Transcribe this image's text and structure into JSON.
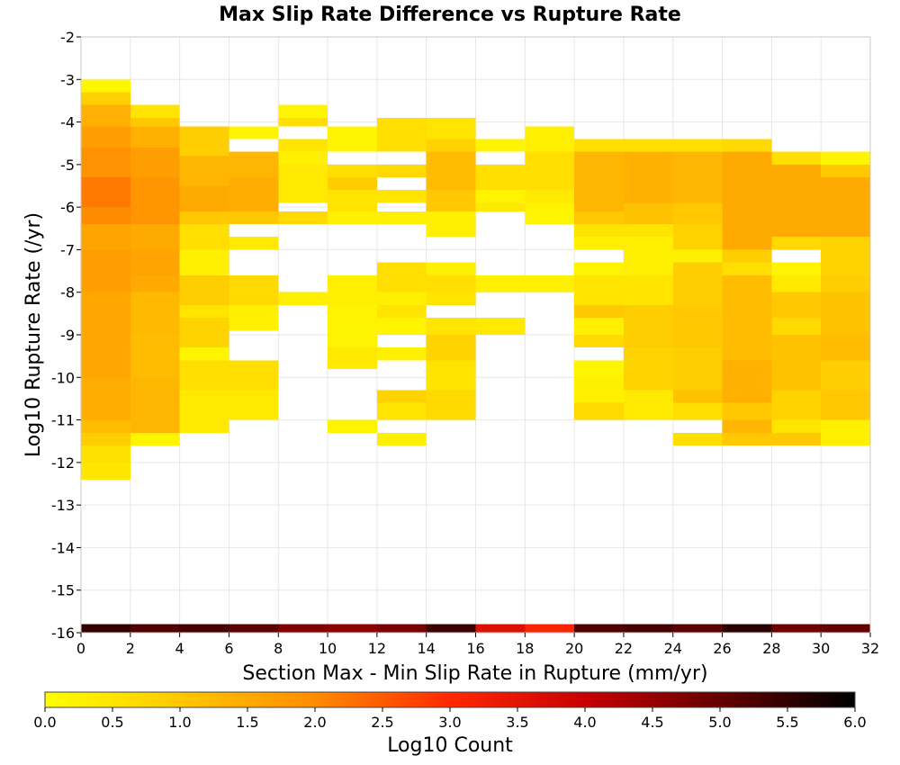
{
  "chart_data": {
    "type": "heatmap",
    "title": "Max Slip Rate Difference vs Rupture Rate",
    "xlabel": "Section Max - Min Slip Rate in Rupture (mm/yr)",
    "ylabel": "Log10 Rupture Rate (/yr)",
    "xlim": [
      0,
      32
    ],
    "ylim": [
      -16,
      -2
    ],
    "x_ticks": [
      "0",
      "2",
      "4",
      "6",
      "8",
      "10",
      "12",
      "14",
      "16",
      "18",
      "20",
      "22",
      "24",
      "26",
      "28",
      "30",
      "32"
    ],
    "y_ticks": [
      "-2",
      "-3",
      "-4",
      "-5",
      "-6",
      "-7",
      "-8",
      "-9",
      "-10",
      "-11",
      "-12",
      "-13",
      "-14",
      "-15",
      "-16"
    ],
    "colorbar": {
      "label": "Log10 Count",
      "min": 0,
      "max": 6,
      "ticks": [
        "0.0",
        "0.5",
        "1.0",
        "1.5",
        "2.0",
        "2.5",
        "3.0",
        "3.5",
        "4.0",
        "4.5",
        "5.0",
        "5.5",
        "6.0"
      ]
    },
    "grid": true,
    "x_bin_width": 2,
    "y_bin_height": 0.29,
    "columns": [
      {
        "x0": 0,
        "bins": [
          {
            "y0": -3.3,
            "y1": -3.0,
            "v": 0.15
          },
          {
            "y0": -3.6,
            "y1": -3.3,
            "v": 0.85
          },
          {
            "y0": -4.1,
            "y1": -3.6,
            "v": 1.4
          },
          {
            "y0": -4.6,
            "y1": -4.1,
            "v": 1.7
          },
          {
            "y0": -5.3,
            "y1": -4.6,
            "v": 1.9
          },
          {
            "y0": -6.0,
            "y1": -5.3,
            "v": 2.2
          },
          {
            "y0": -6.4,
            "y1": -6.0,
            "v": 2.0
          },
          {
            "y0": -7.0,
            "y1": -6.4,
            "v": 1.6
          },
          {
            "y0": -8.0,
            "y1": -7.0,
            "v": 1.7
          },
          {
            "y0": -9.0,
            "y1": -8.0,
            "v": 1.55
          },
          {
            "y0": -10.0,
            "y1": -9.0,
            "v": 1.55
          },
          {
            "y0": -11.0,
            "y1": -10.0,
            "v": 1.45
          },
          {
            "y0": -11.3,
            "y1": -11.0,
            "v": 1.2
          },
          {
            "y0": -11.6,
            "y1": -11.3,
            "v": 0.9
          },
          {
            "y0": -12.0,
            "y1": -11.6,
            "v": 0.55
          },
          {
            "y0": -12.4,
            "y1": -12.0,
            "v": 0.45
          },
          {
            "y0": -16.0,
            "y1": -15.8,
            "v": 5.5
          }
        ]
      },
      {
        "x0": 2,
        "bins": [
          {
            "y0": -3.9,
            "y1": -3.6,
            "v": 0.5
          },
          {
            "y0": -4.1,
            "y1": -3.9,
            "v": 1.0
          },
          {
            "y0": -4.6,
            "y1": -4.1,
            "v": 1.4
          },
          {
            "y0": -5.3,
            "y1": -4.6,
            "v": 1.7
          },
          {
            "y0": -6.4,
            "y1": -5.3,
            "v": 1.85
          },
          {
            "y0": -7.0,
            "y1": -6.4,
            "v": 1.5
          },
          {
            "y0": -7.6,
            "y1": -7.0,
            "v": 1.6
          },
          {
            "y0": -8.0,
            "y1": -7.6,
            "v": 1.5
          },
          {
            "y0": -9.0,
            "y1": -8.0,
            "v": 1.25
          },
          {
            "y0": -10.0,
            "y1": -9.0,
            "v": 1.2
          },
          {
            "y0": -11.3,
            "y1": -10.0,
            "v": 1.3
          },
          {
            "y0": -11.6,
            "y1": -11.3,
            "v": 0.2
          },
          {
            "y0": -16.0,
            "y1": -15.8,
            "v": 5.2
          }
        ]
      },
      {
        "x0": 4,
        "bins": [
          {
            "y0": -4.8,
            "y1": -4.1,
            "v": 0.9
          },
          {
            "y0": -5.5,
            "y1": -4.8,
            "v": 1.3
          },
          {
            "y0": -6.1,
            "y1": -5.5,
            "v": 1.5
          },
          {
            "y0": -6.4,
            "y1": -6.1,
            "v": 1.0
          },
          {
            "y0": -7.0,
            "y1": -6.4,
            "v": 0.6
          },
          {
            "y0": -7.6,
            "y1": -7.0,
            "v": 0.3
          },
          {
            "y0": -8.3,
            "y1": -7.6,
            "v": 0.9
          },
          {
            "y0": -8.6,
            "y1": -8.3,
            "v": 0.5
          },
          {
            "y0": -9.3,
            "y1": -8.6,
            "v": 0.8
          },
          {
            "y0": -9.6,
            "y1": -9.3,
            "v": 0.2
          },
          {
            "y0": -10.3,
            "y1": -9.6,
            "v": 0.6
          },
          {
            "y0": -11.3,
            "y1": -10.3,
            "v": 0.4
          },
          {
            "y0": -16.0,
            "y1": -15.8,
            "v": 5.3
          }
        ]
      },
      {
        "x0": 6,
        "bins": [
          {
            "y0": -4.4,
            "y1": -4.1,
            "v": 0.2
          },
          {
            "y0": -5.3,
            "y1": -4.7,
            "v": 1.3
          },
          {
            "y0": -6.1,
            "y1": -5.3,
            "v": 1.45
          },
          {
            "y0": -6.4,
            "y1": -6.1,
            "v": 1.0
          },
          {
            "y0": -7.0,
            "y1": -6.7,
            "v": 0.4
          },
          {
            "y0": -8.3,
            "y1": -7.6,
            "v": 0.7
          },
          {
            "y0": -8.9,
            "y1": -8.3,
            "v": 0.3
          },
          {
            "y0": -10.3,
            "y1": -9.6,
            "v": 0.6
          },
          {
            "y0": -11.0,
            "y1": -10.3,
            "v": 0.4
          },
          {
            "y0": -16.0,
            "y1": -15.8,
            "v": 5.1
          }
        ]
      },
      {
        "x0": 8,
        "bins": [
          {
            "y0": -3.9,
            "y1": -3.6,
            "v": 0.2
          },
          {
            "y0": -4.1,
            "y1": -3.9,
            "v": 0.6
          },
          {
            "y0": -4.7,
            "y1": -4.4,
            "v": 0.5
          },
          {
            "y0": -5.0,
            "y1": -4.7,
            "v": 0.3
          },
          {
            "y0": -5.9,
            "y1": -5.0,
            "v": 0.4
          },
          {
            "y0": -6.4,
            "y1": -6.1,
            "v": 0.7
          },
          {
            "y0": -8.3,
            "y1": -8.0,
            "v": 0.3
          },
          {
            "y0": -16.0,
            "y1": -15.8,
            "v": 4.7
          }
        ]
      },
      {
        "x0": 10,
        "bins": [
          {
            "y0": -4.7,
            "y1": -4.1,
            "v": 0.2
          },
          {
            "y0": -5.3,
            "y1": -5.0,
            "v": 0.6
          },
          {
            "y0": -5.6,
            "y1": -5.3,
            "v": 0.9
          },
          {
            "y0": -6.1,
            "y1": -5.6,
            "v": 0.5
          },
          {
            "y0": -6.4,
            "y1": -6.1,
            "v": 0.3
          },
          {
            "y0": -8.0,
            "y1": -7.6,
            "v": 0.3
          },
          {
            "y0": -8.3,
            "y1": -8.0,
            "v": 0.3
          },
          {
            "y0": -9.3,
            "y1": -8.3,
            "v": 0.2
          },
          {
            "y0": -9.8,
            "y1": -9.3,
            "v": 0.4
          },
          {
            "y0": -11.3,
            "y1": -11.0,
            "v": 0.2
          },
          {
            "y0": -16.0,
            "y1": -15.8,
            "v": 4.6
          }
        ]
      },
      {
        "x0": 12,
        "bins": [
          {
            "y0": -4.7,
            "y1": -3.9,
            "v": 0.6
          },
          {
            "y0": -5.3,
            "y1": -5.0,
            "v": 0.7
          },
          {
            "y0": -5.9,
            "y1": -5.6,
            "v": 0.5
          },
          {
            "y0": -6.4,
            "y1": -6.1,
            "v": 0.3
          },
          {
            "y0": -8.0,
            "y1": -7.3,
            "v": 0.6
          },
          {
            "y0": -8.3,
            "y1": -8.0,
            "v": 0.3
          },
          {
            "y0": -8.6,
            "y1": -8.3,
            "v": 0.5
          },
          {
            "y0": -9.0,
            "y1": -8.6,
            "v": 0.2
          },
          {
            "y0": -9.6,
            "y1": -9.3,
            "v": 0.3
          },
          {
            "y0": -10.6,
            "y1": -10.3,
            "v": 0.8
          },
          {
            "y0": -11.0,
            "y1": -10.6,
            "v": 0.5
          },
          {
            "y0": -11.6,
            "y1": -11.3,
            "v": 0.3
          },
          {
            "y0": -16.0,
            "y1": -15.8,
            "v": 4.8
          }
        ]
      },
      {
        "x0": 14,
        "bins": [
          {
            "y0": -4.4,
            "y1": -3.9,
            "v": 0.5
          },
          {
            "y0": -4.7,
            "y1": -4.4,
            "v": 0.8
          },
          {
            "y0": -5.6,
            "y1": -4.7,
            "v": 1.2
          },
          {
            "y0": -6.1,
            "y1": -5.6,
            "v": 1.0
          },
          {
            "y0": -6.7,
            "y1": -6.1,
            "v": 0.3
          },
          {
            "y0": -7.6,
            "y1": -7.3,
            "v": 0.3
          },
          {
            "y0": -8.0,
            "y1": -7.6,
            "v": 0.6
          },
          {
            "y0": -8.3,
            "y1": -8.0,
            "v": 0.5
          },
          {
            "y0": -9.0,
            "y1": -8.6,
            "v": 0.5
          },
          {
            "y0": -9.6,
            "y1": -9.0,
            "v": 0.8
          },
          {
            "y0": -10.3,
            "y1": -9.6,
            "v": 0.5
          },
          {
            "y0": -11.0,
            "y1": -10.3,
            "v": 0.7
          },
          {
            "y0": -16.0,
            "y1": -15.8,
            "v": 5.4
          }
        ]
      },
      {
        "x0": 16,
        "bins": [
          {
            "y0": -4.7,
            "y1": -4.4,
            "v": 0.2
          },
          {
            "y0": -5.6,
            "y1": -5.0,
            "v": 0.6
          },
          {
            "y0": -5.9,
            "y1": -5.6,
            "v": 0.2
          },
          {
            "y0": -6.1,
            "y1": -5.9,
            "v": 0.4
          },
          {
            "y0": -8.0,
            "y1": -7.6,
            "v": 0.3
          },
          {
            "y0": -9.0,
            "y1": -8.6,
            "v": 0.4
          },
          {
            "y0": -16.0,
            "y1": -15.8,
            "v": 3.6
          }
        ]
      },
      {
        "x0": 18,
        "bins": [
          {
            "y0": -4.7,
            "y1": -4.1,
            "v": 0.3
          },
          {
            "y0": -5.6,
            "y1": -4.7,
            "v": 0.6
          },
          {
            "y0": -5.9,
            "y1": -5.6,
            "v": 0.4
          },
          {
            "y0": -6.4,
            "y1": -5.9,
            "v": 0.2
          },
          {
            "y0": -8.0,
            "y1": -7.6,
            "v": 0.3
          },
          {
            "y0": -16.0,
            "y1": -15.8,
            "v": 3.1
          }
        ]
      },
      {
        "x0": 20,
        "bins": [
          {
            "y0": -4.7,
            "y1": -4.4,
            "v": 0.6
          },
          {
            "y0": -6.1,
            "y1": -4.7,
            "v": 1.3
          },
          {
            "y0": -6.4,
            "y1": -6.1,
            "v": 1.0
          },
          {
            "y0": -6.7,
            "y1": -6.4,
            "v": 0.5
          },
          {
            "y0": -7.0,
            "y1": -6.7,
            "v": 0.3
          },
          {
            "y0": -7.6,
            "y1": -7.3,
            "v": 0.2
          },
          {
            "y0": -8.3,
            "y1": -7.6,
            "v": 0.5
          },
          {
            "y0": -8.6,
            "y1": -8.3,
            "v": 1.0
          },
          {
            "y0": -9.0,
            "y1": -8.6,
            "v": 0.3
          },
          {
            "y0": -9.3,
            "y1": -9.0,
            "v": 0.7
          },
          {
            "y0": -10.0,
            "y1": -9.6,
            "v": 0.2
          },
          {
            "y0": -10.6,
            "y1": -10.0,
            "v": 0.3
          },
          {
            "y0": -11.0,
            "y1": -10.6,
            "v": 0.7
          },
          {
            "y0": -16.0,
            "y1": -15.8,
            "v": 5.2
          }
        ]
      },
      {
        "x0": 22,
        "bins": [
          {
            "y0": -4.7,
            "y1": -4.4,
            "v": 0.6
          },
          {
            "y0": -5.9,
            "y1": -4.7,
            "v": 1.4
          },
          {
            "y0": -6.4,
            "y1": -5.9,
            "v": 1.1
          },
          {
            "y0": -6.7,
            "y1": -6.4,
            "v": 0.5
          },
          {
            "y0": -7.6,
            "y1": -6.7,
            "v": 0.3
          },
          {
            "y0": -8.3,
            "y1": -7.6,
            "v": 0.5
          },
          {
            "y0": -9.3,
            "y1": -8.3,
            "v": 0.9
          },
          {
            "y0": -10.3,
            "y1": -9.3,
            "v": 0.8
          },
          {
            "y0": -11.0,
            "y1": -10.3,
            "v": 0.4
          },
          {
            "y0": -16.0,
            "y1": -15.8,
            "v": 5.3
          }
        ]
      },
      {
        "x0": 24,
        "bins": [
          {
            "y0": -4.7,
            "y1": -4.4,
            "v": 0.6
          },
          {
            "y0": -5.9,
            "y1": -4.7,
            "v": 1.3
          },
          {
            "y0": -6.4,
            "y1": -5.9,
            "v": 1.0
          },
          {
            "y0": -7.0,
            "y1": -6.4,
            "v": 0.8
          },
          {
            "y0": -7.3,
            "y1": -7.0,
            "v": 0.3
          },
          {
            "y0": -8.3,
            "y1": -7.3,
            "v": 0.9
          },
          {
            "y0": -9.3,
            "y1": -8.3,
            "v": 1.0
          },
          {
            "y0": -10.3,
            "y1": -9.3,
            "v": 0.9
          },
          {
            "y0": -10.6,
            "y1": -10.3,
            "v": 1.1
          },
          {
            "y0": -11.0,
            "y1": -10.6,
            "v": 0.6
          },
          {
            "y0": -11.6,
            "y1": -11.3,
            "v": 0.6
          },
          {
            "y0": -16.0,
            "y1": -15.8,
            "v": 5.1
          }
        ]
      },
      {
        "x0": 26,
        "bins": [
          {
            "y0": -4.7,
            "y1": -4.4,
            "v": 0.7
          },
          {
            "y0": -7.0,
            "y1": -4.7,
            "v": 1.5
          },
          {
            "y0": -7.3,
            "y1": -7.0,
            "v": 0.9
          },
          {
            "y0": -7.6,
            "y1": -7.3,
            "v": 0.6
          },
          {
            "y0": -9.6,
            "y1": -7.6,
            "v": 1.2
          },
          {
            "y0": -10.6,
            "y1": -9.6,
            "v": 1.4
          },
          {
            "y0": -11.0,
            "y1": -10.6,
            "v": 1.0
          },
          {
            "y0": -11.3,
            "y1": -11.0,
            "v": 1.3
          },
          {
            "y0": -11.6,
            "y1": -11.3,
            "v": 1.0
          },
          {
            "y0": -16.0,
            "y1": -15.8,
            "v": 5.6
          }
        ]
      },
      {
        "x0": 28,
        "bins": [
          {
            "y0": -5.0,
            "y1": -4.7,
            "v": 0.6
          },
          {
            "y0": -6.7,
            "y1": -5.0,
            "v": 1.5
          },
          {
            "y0": -7.0,
            "y1": -6.7,
            "v": 0.7
          },
          {
            "y0": -7.6,
            "y1": -7.3,
            "v": 0.2
          },
          {
            "y0": -8.0,
            "y1": -7.6,
            "v": 0.4
          },
          {
            "y0": -8.6,
            "y1": -8.0,
            "v": 1.0
          },
          {
            "y0": -9.0,
            "y1": -8.6,
            "v": 0.7
          },
          {
            "y0": -10.3,
            "y1": -9.0,
            "v": 1.1
          },
          {
            "y0": -11.0,
            "y1": -10.3,
            "v": 0.8
          },
          {
            "y0": -11.3,
            "y1": -11.0,
            "v": 0.5
          },
          {
            "y0": -11.6,
            "y1": -11.3,
            "v": 1.0
          },
          {
            "y0": -16.0,
            "y1": -15.8,
            "v": 4.9
          }
        ]
      },
      {
        "x0": 30,
        "bins": [
          {
            "y0": -5.0,
            "y1": -4.7,
            "v": 0.2
          },
          {
            "y0": -5.3,
            "y1": -5.0,
            "v": 1.0
          },
          {
            "y0": -6.7,
            "y1": -5.3,
            "v": 1.5
          },
          {
            "y0": -7.6,
            "y1": -6.7,
            "v": 0.8
          },
          {
            "y0": -8.0,
            "y1": -7.6,
            "v": 0.9
          },
          {
            "y0": -9.0,
            "y1": -8.0,
            "v": 1.1
          },
          {
            "y0": -9.6,
            "y1": -9.0,
            "v": 1.2
          },
          {
            "y0": -10.3,
            "y1": -9.6,
            "v": 0.9
          },
          {
            "y0": -11.0,
            "y1": -10.3,
            "v": 1.0
          },
          {
            "y0": -11.6,
            "y1": -11.0,
            "v": 0.3
          },
          {
            "y0": -16.0,
            "y1": -15.8,
            "v": 5.0
          }
        ]
      }
    ]
  }
}
